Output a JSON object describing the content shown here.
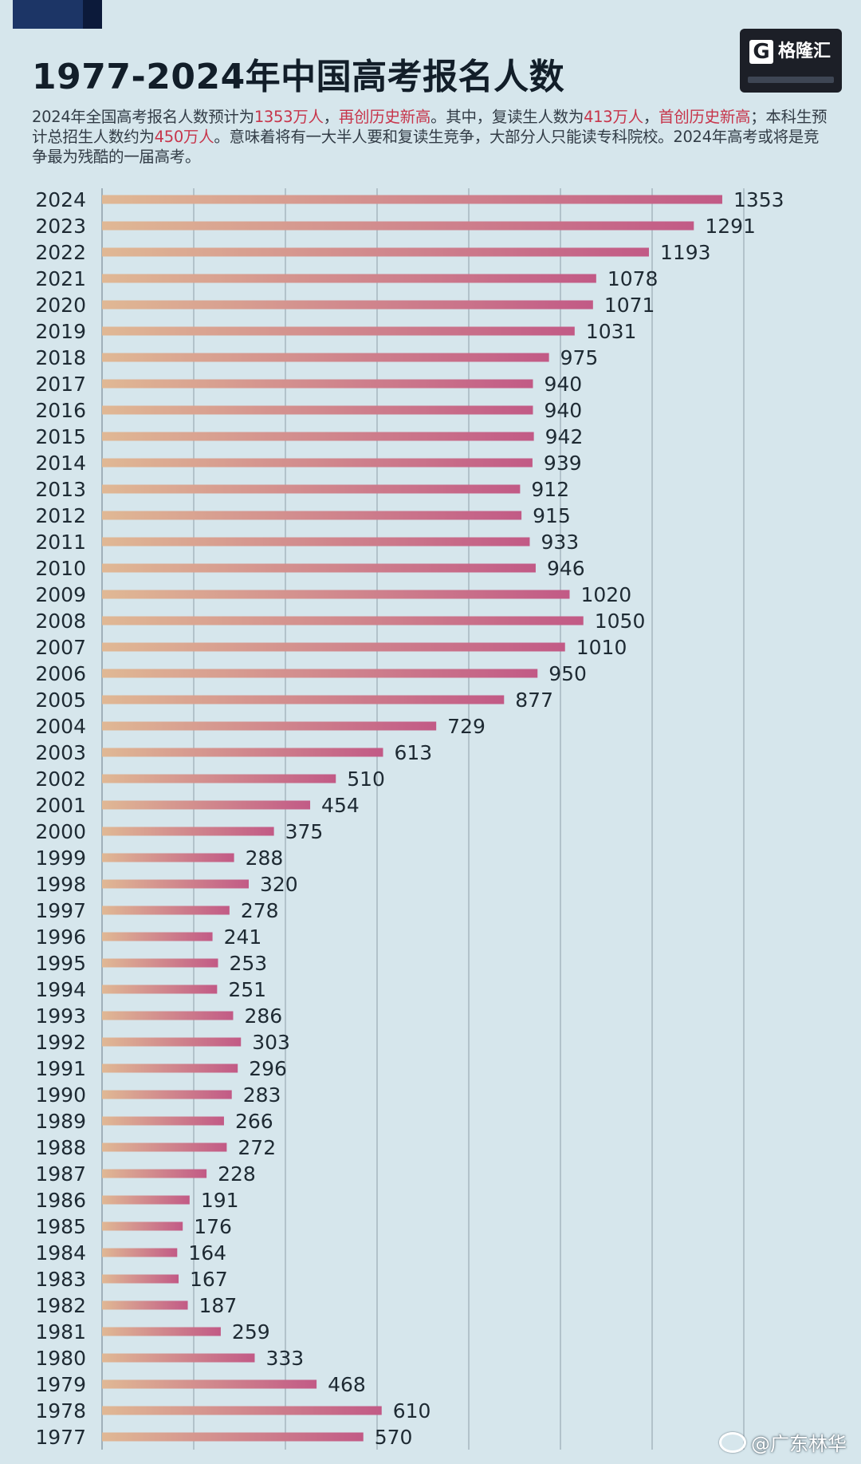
{
  "title": "1977-2024年中国高考报名人数",
  "subtitle": {
    "t1": "2024年全国高考报名人数预计为",
    "h1": "1353万人",
    "t2": "，",
    "h2": "再创历史新高",
    "t3": "。其中，复读生人数为",
    "h3": "413万人",
    "t4": "，",
    "h4": "首创历史新高",
    "t5": "；本科生预计总招生人数约为",
    "h5": "450万人",
    "t6": "。意味着将有一大半人要和复读生竞争，大部分人只能读专科院校。2024年高考或将是竞争最为残酷的一届高考。"
  },
  "logo": {
    "mark": "G",
    "text": "格隆汇"
  },
  "credit": "@广东林华",
  "colors": {
    "background": "#d6e6ec",
    "bar_left": "#e0b894",
    "bar_right": "#c25a86",
    "gridline": "#8e9ea8",
    "highlight_text": "#c7354b"
  },
  "chart_data": {
    "type": "bar",
    "orientation": "horizontal",
    "title": "1977-2024年中国高考报名人数",
    "xlabel": "",
    "ylabel": "",
    "xlim": [
      0,
      1400
    ],
    "grid": true,
    "legend": "none",
    "data_labels": true,
    "categories": [
      "2024",
      "2023",
      "2022",
      "2021",
      "2020",
      "2019",
      "2018",
      "2017",
      "2016",
      "2015",
      "2014",
      "2013",
      "2012",
      "2011",
      "2010",
      "2009",
      "2008",
      "2007",
      "2006",
      "2005",
      "2004",
      "2003",
      "2002",
      "2001",
      "2000",
      "1999",
      "1998",
      "1997",
      "1996",
      "1995",
      "1994",
      "1993",
      "1992",
      "1991",
      "1990",
      "1989",
      "1988",
      "1987",
      "1986",
      "1985",
      "1984",
      "1983",
      "1982",
      "1981",
      "1980",
      "1979",
      "1978",
      "1977"
    ],
    "values": [
      1353,
      1291,
      1193,
      1078,
      1071,
      1031,
      975,
      940,
      940,
      942,
      939,
      912,
      915,
      933,
      946,
      1020,
      1050,
      1010,
      950,
      877,
      729,
      613,
      510,
      454,
      375,
      288,
      320,
      278,
      241,
      253,
      251,
      286,
      303,
      296,
      283,
      266,
      272,
      228,
      191,
      176,
      164,
      167,
      187,
      259,
      333,
      468,
      610,
      570
    ]
  }
}
